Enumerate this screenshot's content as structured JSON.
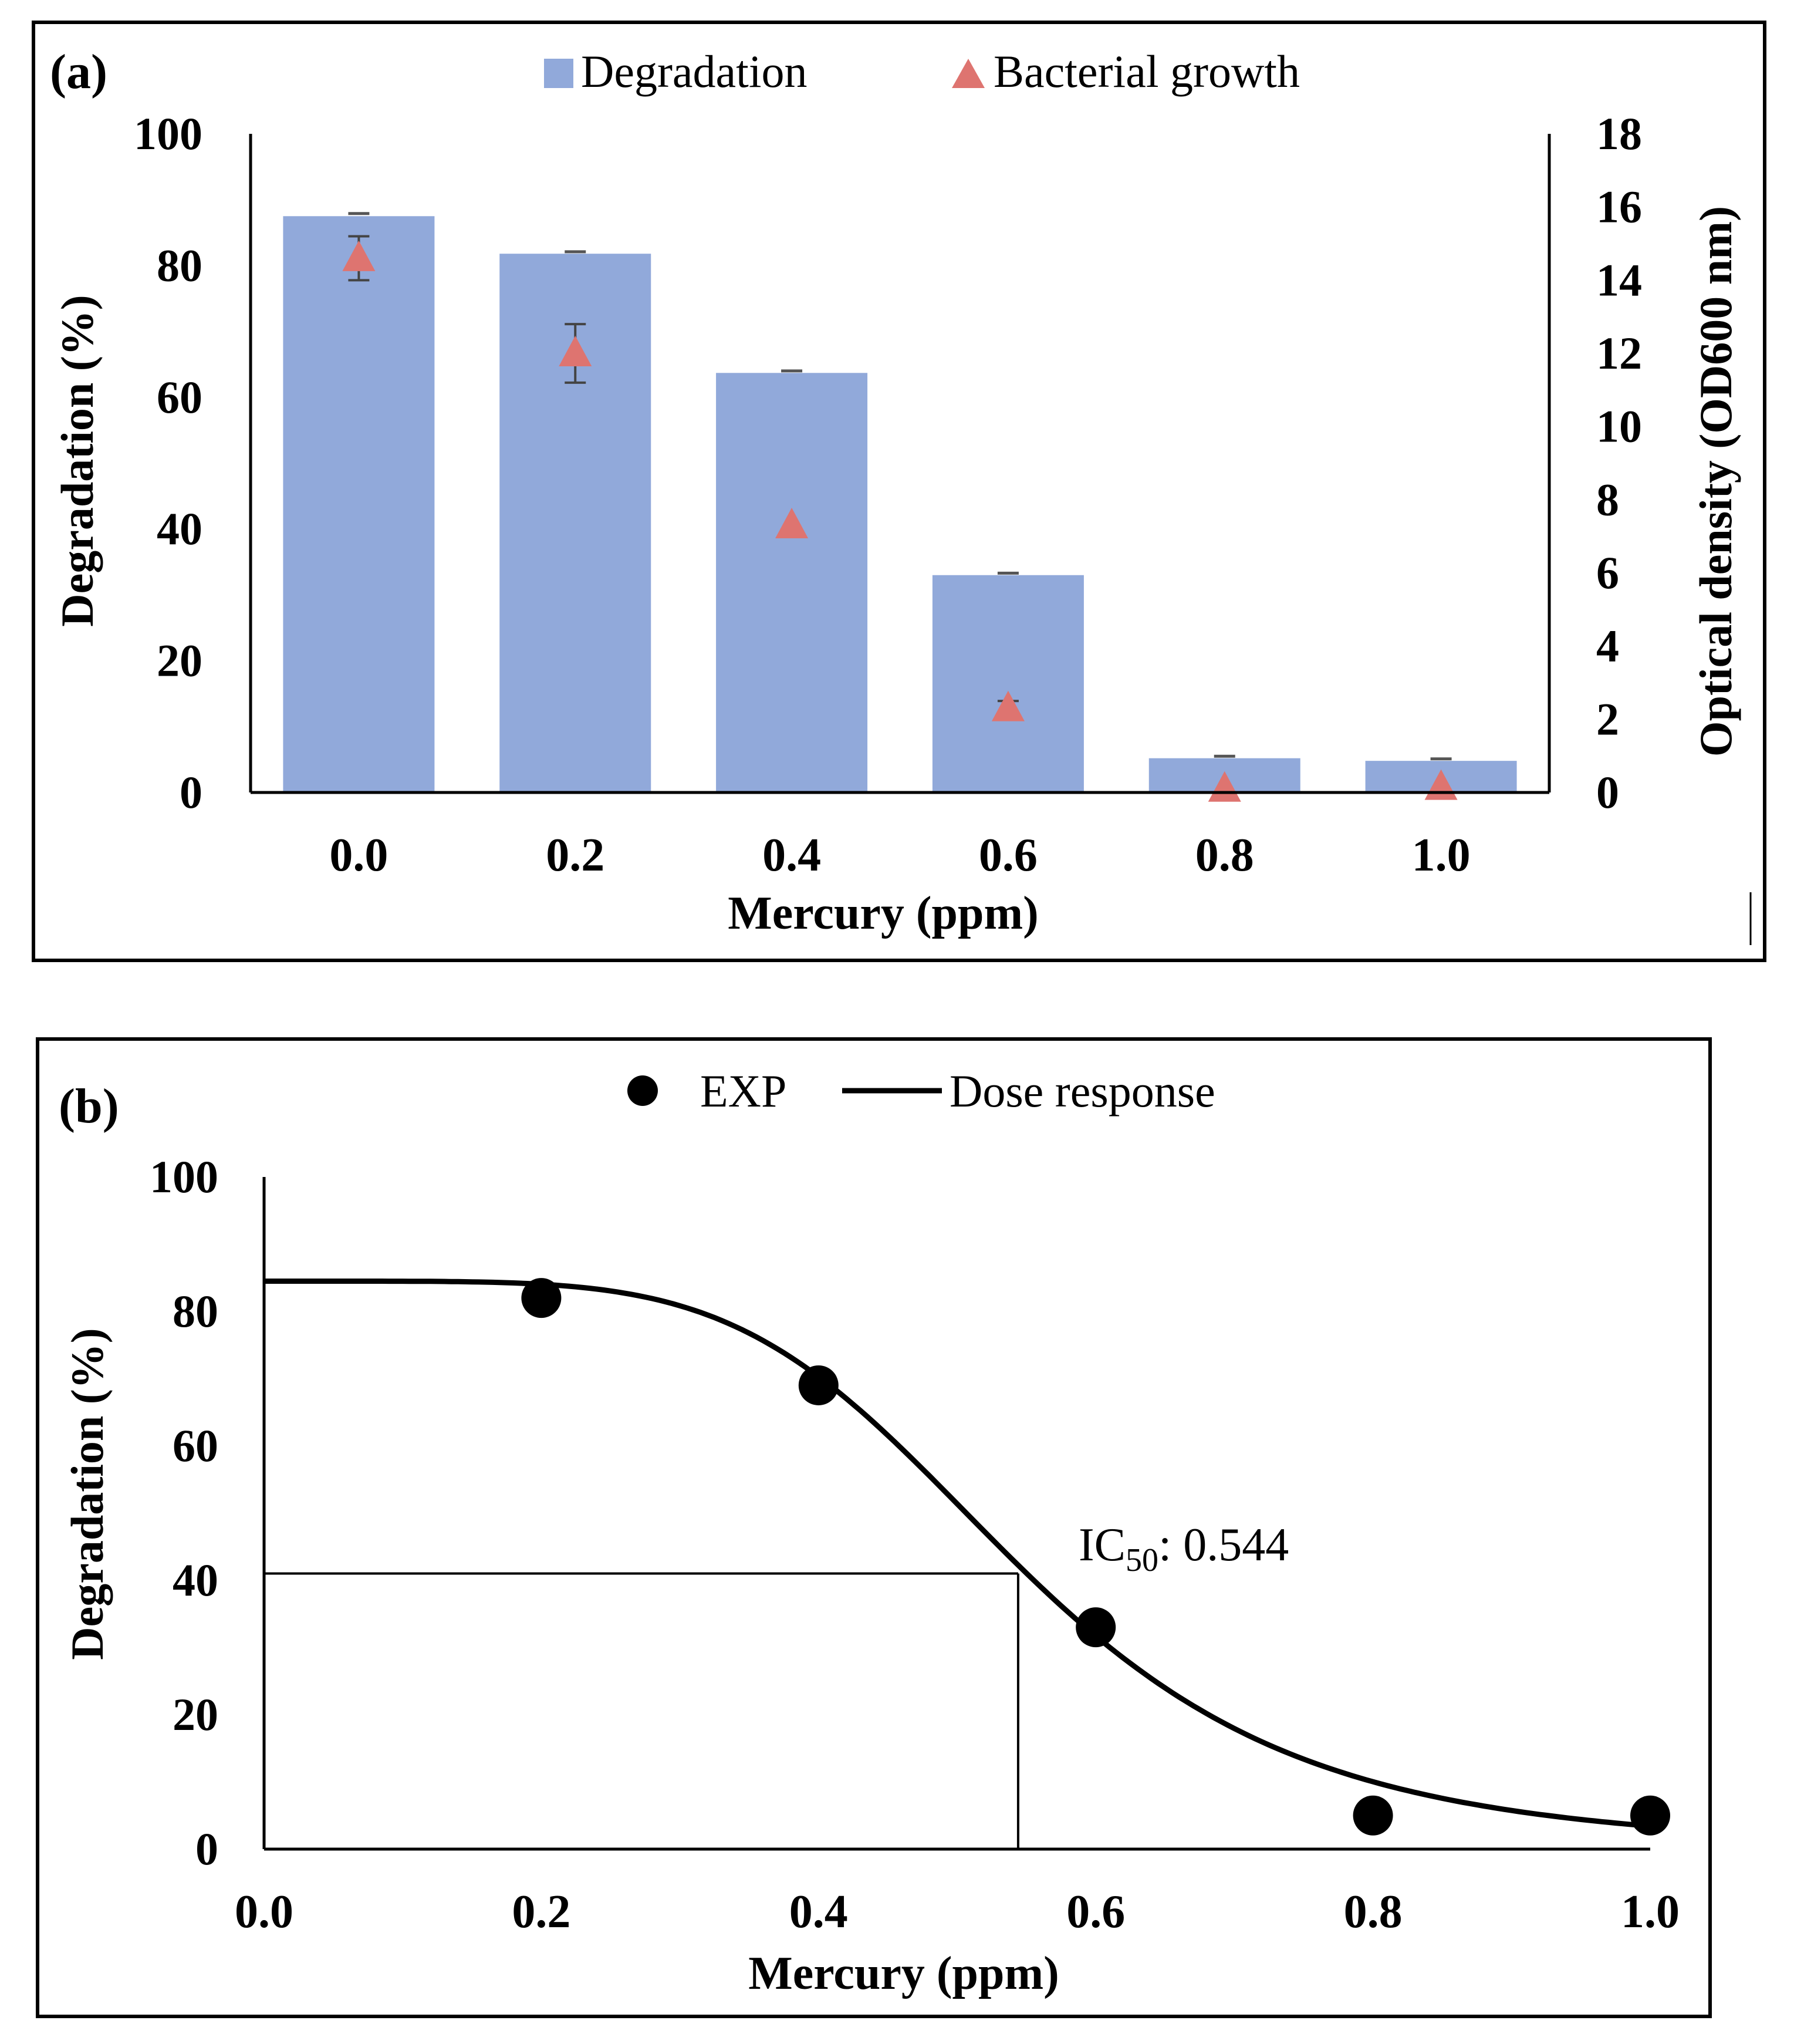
{
  "chart_data": [
    {
      "panel_label": "(a)",
      "type": "bar",
      "xlabel": "Mercury (ppm)",
      "ylabel": "Degradation (%)",
      "y2label": "Optical density (OD600 nm)",
      "categories": [
        "0.0",
        "0.2",
        "0.4",
        "0.6",
        "0.8",
        "1.0"
      ],
      "ylim": [
        0,
        100
      ],
      "y_ticks": [
        0,
        20,
        40,
        60,
        80,
        100
      ],
      "y2lim": [
        0,
        18
      ],
      "y2_ticks": [
        0,
        2,
        4,
        6,
        8,
        10,
        12,
        14,
        16,
        18
      ],
      "legend_position": "top-center",
      "grid": false,
      "series": [
        {
          "name": "Degradation",
          "type": "bar",
          "axis": "left",
          "color": "#91A9DA",
          "values": [
            87.5,
            81.8,
            63.7,
            33.0,
            5.2,
            4.8
          ],
          "error": [
            0.4,
            0.3,
            0.3,
            0.3,
            0.3,
            0.3
          ]
        },
        {
          "name": "Bacterial growth",
          "type": "scatter",
          "axis": "right",
          "marker": "triangle",
          "color": "#DE7470",
          "values": [
            14.6,
            12.0,
            7.3,
            2.3,
            0.1,
            0.15
          ],
          "error": [
            0.6,
            0.8,
            0.1,
            0.2,
            0.1,
            0.1
          ]
        }
      ]
    },
    {
      "panel_label": "(b)",
      "type": "scatter",
      "xlabel": "Mercury (ppm)",
      "ylabel": "Degradation (%)",
      "xlim": [
        0,
        1
      ],
      "x_ticks": [
        "0.0",
        "0.2",
        "0.4",
        "0.6",
        "0.8",
        "1.0"
      ],
      "ylim": [
        0,
        100
      ],
      "y_ticks": [
        0,
        20,
        40,
        60,
        80,
        100
      ],
      "legend_position": "top-center",
      "grid": false,
      "series": [
        {
          "name": "EXP",
          "type": "scatter",
          "color": "#000000",
          "x": [
            0.2,
            0.4,
            0.6,
            0.8,
            1.0
          ],
          "y": [
            82,
            69,
            33,
            5,
            5
          ]
        },
        {
          "name": "Dose response",
          "type": "line",
          "color": "#000000",
          "model": {
            "top": 84.5,
            "bottom": 0,
            "ic50": 0.544,
            "hill": 5.2
          }
        }
      ],
      "annotation": {
        "text_prefix": "IC",
        "text_subscript": "50",
        "text_suffix": ": 0.544",
        "ic50_x": 0.544,
        "ic50_y": 41
      }
    }
  ]
}
